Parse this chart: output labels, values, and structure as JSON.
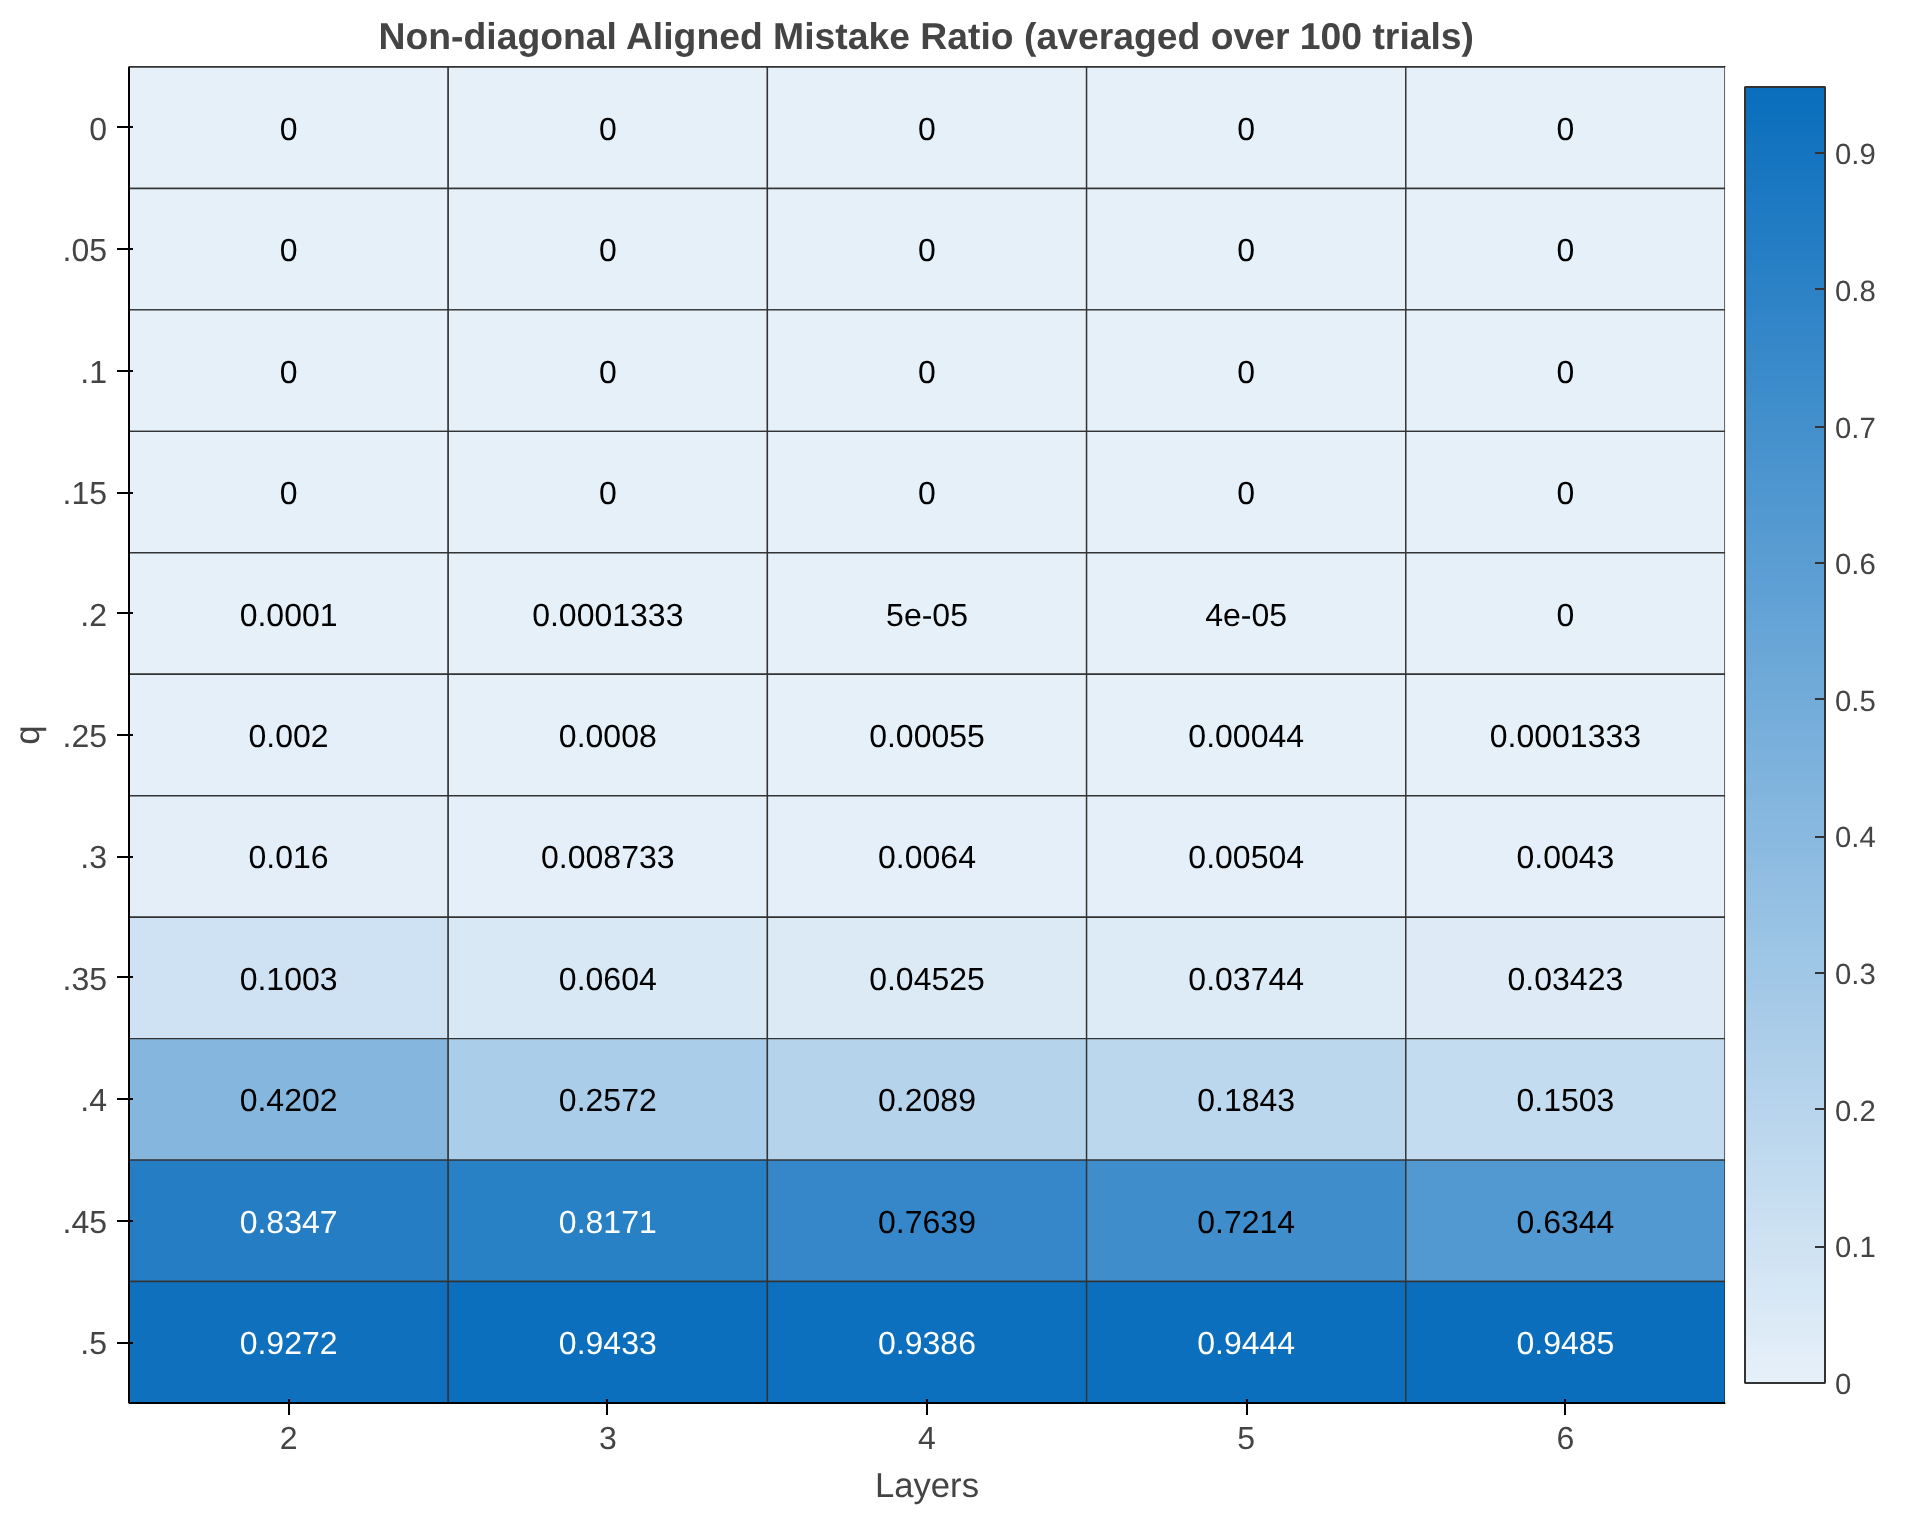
{
  "chart_data": {
    "type": "heatmap",
    "title": "Non-diagonal Aligned Mistake Ratio (averaged over 100 trials)",
    "xlabel": "Layers",
    "ylabel": "q",
    "categories": [
      "2",
      "3",
      "4",
      "5",
      "6"
    ],
    "y_categories": [
      "0",
      ".05",
      ".1",
      ".15",
      ".2",
      ".25",
      ".3",
      ".35",
      ".4",
      ".45",
      ".5"
    ],
    "cells": [
      [
        0,
        0,
        0,
        0,
        0
      ],
      [
        0,
        0,
        0,
        0,
        0
      ],
      [
        0,
        0,
        0,
        0,
        0
      ],
      [
        0,
        0,
        0,
        0,
        0
      ],
      [
        0.0001,
        0.0001333,
        5e-05,
        4e-05,
        0
      ],
      [
        0.002,
        0.0008,
        0.00055,
        0.00044,
        0.0001333
      ],
      [
        0.016,
        0.008733,
        0.0064,
        0.00504,
        0.0043
      ],
      [
        0.1003,
        0.0604,
        0.04525,
        0.03744,
        0.03423
      ],
      [
        0.4202,
        0.2572,
        0.2089,
        0.1843,
        0.1503
      ],
      [
        0.8347,
        0.8171,
        0.7639,
        0.7214,
        0.6344
      ],
      [
        0.9272,
        0.9433,
        0.9386,
        0.9444,
        0.9485
      ]
    ],
    "cell_labels": [
      [
        "0",
        "0",
        "0",
        "0",
        "0"
      ],
      [
        "0",
        "0",
        "0",
        "0",
        "0"
      ],
      [
        "0",
        "0",
        "0",
        "0",
        "0"
      ],
      [
        "0",
        "0",
        "0",
        "0",
        "0"
      ],
      [
        "0.0001",
        "0.0001333",
        "5e-05",
        "4e-05",
        "0"
      ],
      [
        "0.002",
        "0.0008",
        "0.00055",
        "0.00044",
        "0.0001333"
      ],
      [
        "0.016",
        "0.008733",
        "0.0064",
        "0.00504",
        "0.0043"
      ],
      [
        "0.1003",
        "0.0604",
        "0.04525",
        "0.03744",
        "0.03423"
      ],
      [
        "0.4202",
        "0.2572",
        "0.2089",
        "0.1843",
        "0.1503"
      ],
      [
        "0.8347",
        "0.8171",
        "0.7639",
        "0.7214",
        "0.6344"
      ],
      [
        "0.9272",
        "0.9433",
        "0.9386",
        "0.9444",
        "0.9485"
      ]
    ],
    "colors": [
      "#e6f0f9",
      "#0a6ebd"
    ],
    "clim": [
      0,
      0.9485
    ],
    "cticks": [
      0,
      0.1,
      0.2,
      0.3,
      0.4,
      0.5,
      0.6,
      0.7,
      0.8,
      0.9
    ]
  }
}
